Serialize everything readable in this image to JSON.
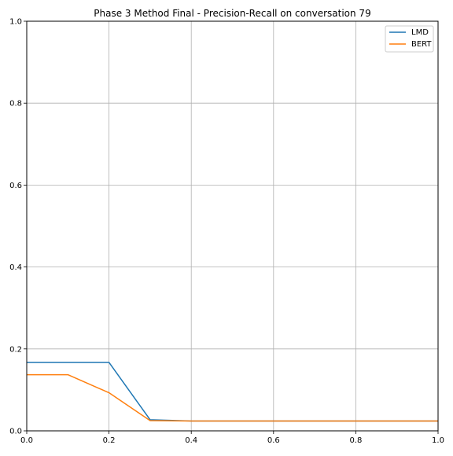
{
  "chart_data": {
    "type": "line",
    "title": "Phase 3 Method Final - Precision-Recall on conversation 79",
    "xlabel": "",
    "ylabel": "",
    "xlim": [
      0,
      1
    ],
    "ylim": [
      0,
      1
    ],
    "xticks": [
      "0.0",
      "0.2",
      "0.4",
      "0.6",
      "0.8",
      "1.0"
    ],
    "yticks": [
      "0.0",
      "0.2",
      "0.4",
      "0.6",
      "0.8",
      "1.0"
    ],
    "grid": true,
    "legend_position": "top-right",
    "x": [
      0.0,
      0.1,
      0.2,
      0.3,
      0.4,
      0.5,
      0.6,
      0.7,
      0.8,
      0.9,
      1.0
    ],
    "series": [
      {
        "name": "LMD",
        "color": "#1f77b4",
        "values": [
          0.167,
          0.167,
          0.167,
          0.027,
          0.024,
          0.024,
          0.024,
          0.024,
          0.024,
          0.024,
          0.024
        ]
      },
      {
        "name": "BERT",
        "color": "#ff7f0e",
        "values": [
          0.137,
          0.137,
          0.093,
          0.025,
          0.024,
          0.024,
          0.024,
          0.024,
          0.024,
          0.024,
          0.024
        ]
      }
    ]
  }
}
